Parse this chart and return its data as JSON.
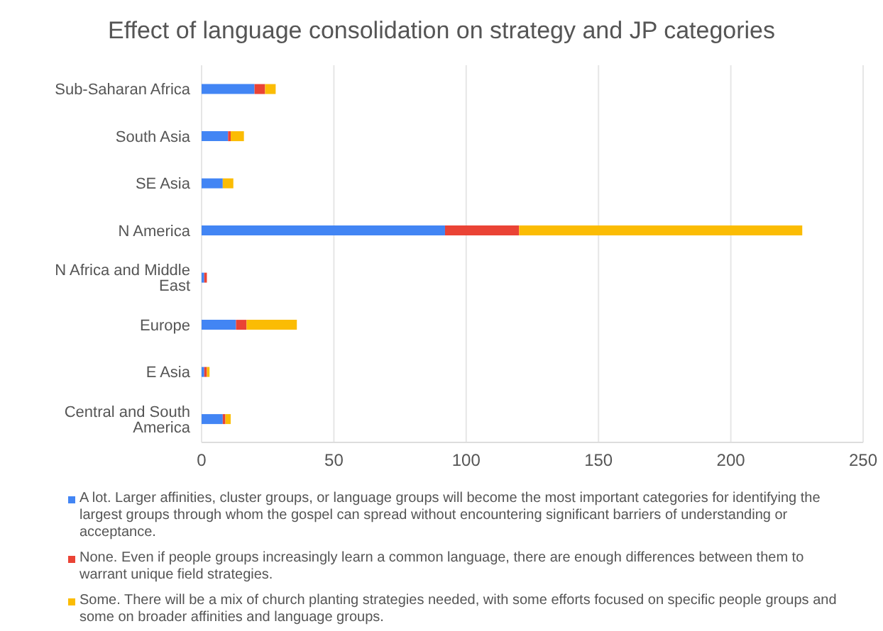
{
  "chart_data": {
    "type": "bar",
    "orientation": "horizontal",
    "stacked": true,
    "title": "Effect of language consolidation on strategy and JP categories",
    "categories": [
      "Sub-Saharan Africa",
      "South Asia",
      "SE Asia",
      "N America",
      "N Africa and Middle East",
      "Europe",
      "E Asia",
      "Central and South America"
    ],
    "series": [
      {
        "name": "A lot. Larger affinities, cluster groups, or language groups will become the most important categories for identifying the largest groups through whom the gospel can spread without encountering significant barriers of understanding or acceptance.",
        "color": "#4285f4",
        "values": [
          20,
          10,
          8,
          92,
          1,
          13,
          1,
          8
        ]
      },
      {
        "name": "None. Even if people groups increasingly learn a common language, there are enough differences between them to warrant unique field strategies.",
        "color": "#ea4335",
        "values": [
          4,
          1,
          0,
          28,
          1,
          4,
          1,
          1
        ]
      },
      {
        "name": "Some. There will be a mix of church planting strategies needed, with some efforts focused on specific people groups and some on broader affinities and language groups.",
        "color": "#fbbc04",
        "values": [
          4,
          5,
          4,
          107,
          0,
          19,
          1,
          2
        ]
      }
    ],
    "xlim": [
      0,
      250
    ],
    "xticks": [
      0,
      50,
      100,
      150,
      200,
      250
    ],
    "grid": "x",
    "legend": "bottom"
  }
}
